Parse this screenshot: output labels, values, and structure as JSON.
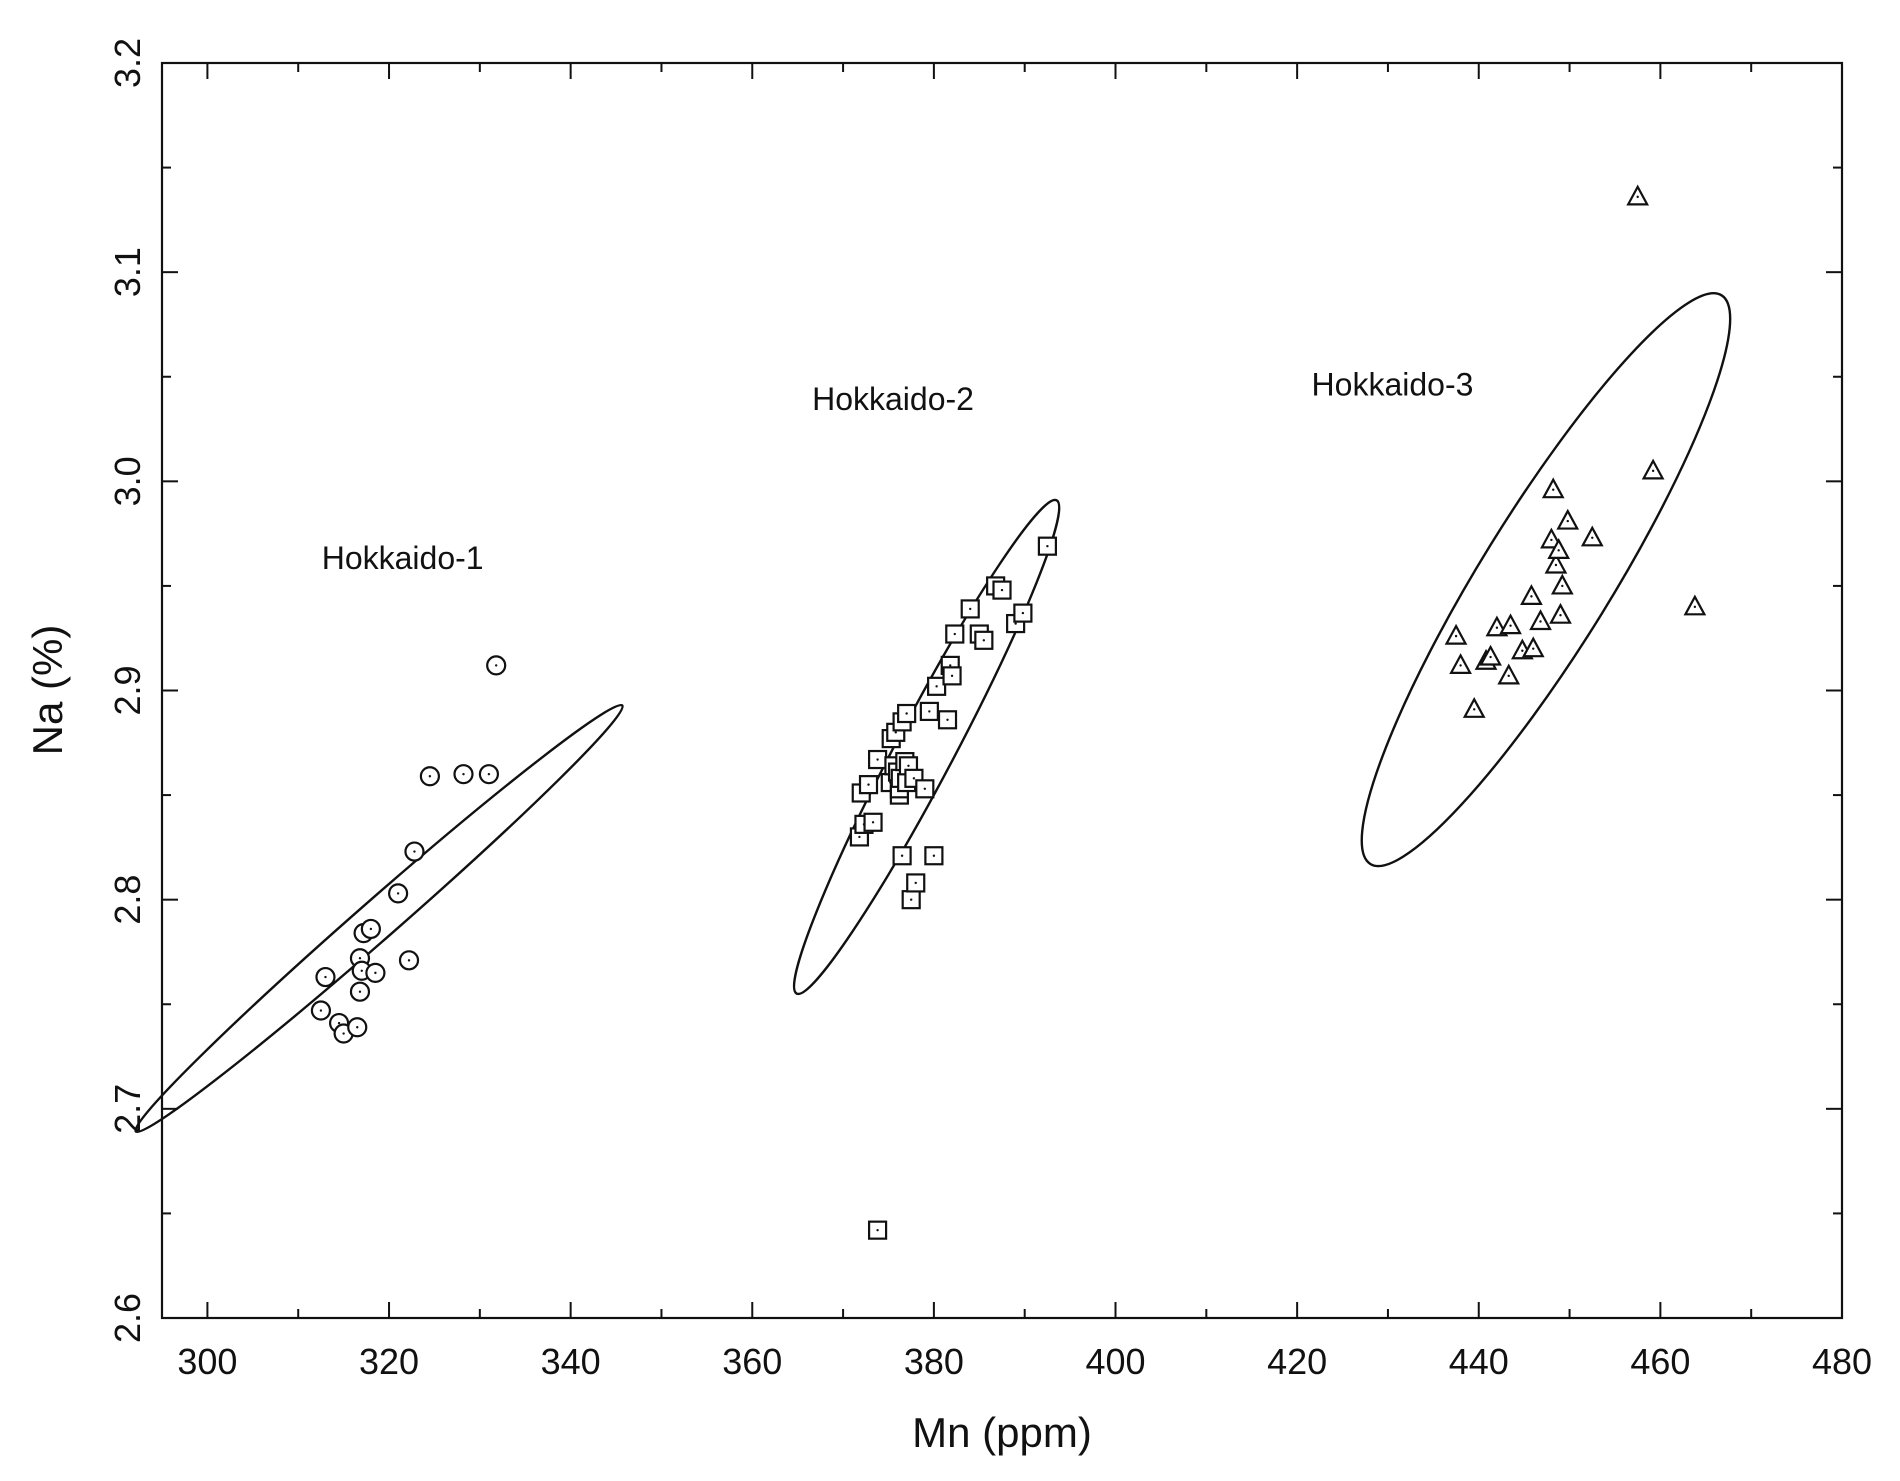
{
  "chart_data": {
    "type": "scatter",
    "title": "",
    "xlabel": "Mn (ppm)",
    "ylabel": "Na (%)",
    "xlim": [
      295,
      480
    ],
    "ylim": [
      2.6,
      3.2
    ],
    "x_ticks": [
      "300",
      "320",
      "340",
      "360",
      "380",
      "400",
      "420",
      "440",
      "460",
      "480"
    ],
    "y_ticks": [
      "2.6",
      "2.7",
      "2.8",
      "2.9",
      "3.0",
      "3.1",
      "3.2"
    ],
    "grid": false,
    "legend": "none",
    "series": [
      {
        "name": "Hokkaido-1",
        "marker": "circle",
        "points": [
          [
            312.5,
            2.747
          ],
          [
            313.0,
            2.763
          ],
          [
            314.5,
            2.741
          ],
          [
            315.0,
            2.736
          ],
          [
            316.5,
            2.739
          ],
          [
            316.8,
            2.756
          ],
          [
            316.8,
            2.772
          ],
          [
            317.0,
            2.766
          ],
          [
            317.2,
            2.784
          ],
          [
            318.0,
            2.786
          ],
          [
            318.5,
            2.765
          ],
          [
            321.0,
            2.803
          ],
          [
            322.2,
            2.771
          ],
          [
            322.8,
            2.823
          ],
          [
            324.5,
            2.859
          ],
          [
            328.2,
            2.86
          ],
          [
            331.0,
            2.86
          ],
          [
            331.8,
            2.912
          ]
        ]
      },
      {
        "name": "Hokkaido-2",
        "marker": "square",
        "points": [
          [
            371.8,
            2.83
          ],
          [
            372.0,
            2.851
          ],
          [
            372.3,
            2.836
          ],
          [
            372.8,
            2.855
          ],
          [
            373.3,
            2.837
          ],
          [
            373.8,
            2.867
          ],
          [
            373.8,
            2.642
          ],
          [
            375.2,
            2.856
          ],
          [
            375.3,
            2.877
          ],
          [
            375.6,
            2.864
          ],
          [
            375.8,
            2.88
          ],
          [
            376.0,
            2.861
          ],
          [
            376.2,
            2.85
          ],
          [
            376.2,
            2.853
          ],
          [
            376.3,
            2.858
          ],
          [
            376.5,
            2.885
          ],
          [
            376.5,
            2.821
          ],
          [
            376.8,
            2.866
          ],
          [
            377.0,
            2.889
          ],
          [
            377.0,
            2.856
          ],
          [
            377.2,
            2.864
          ],
          [
            377.5,
            2.8
          ],
          [
            377.8,
            2.858
          ],
          [
            378.0,
            2.808
          ],
          [
            379.0,
            2.853
          ],
          [
            379.5,
            2.89
          ],
          [
            380.0,
            2.821
          ],
          [
            380.3,
            2.902
          ],
          [
            381.5,
            2.886
          ],
          [
            381.8,
            2.912
          ],
          [
            382.0,
            2.907
          ],
          [
            382.3,
            2.927
          ],
          [
            384.0,
            2.939
          ],
          [
            385.0,
            2.927
          ],
          [
            385.5,
            2.924
          ],
          [
            386.8,
            2.95
          ],
          [
            387.5,
            2.948
          ],
          [
            389.0,
            2.932
          ],
          [
            389.8,
            2.937
          ],
          [
            392.5,
            2.969
          ]
        ]
      },
      {
        "name": "Hokkaido-3",
        "marker": "triangle",
        "points": [
          [
            437.5,
            2.926
          ],
          [
            438.0,
            2.912
          ],
          [
            439.5,
            2.891
          ],
          [
            440.8,
            2.914
          ],
          [
            441.3,
            2.916
          ],
          [
            442.0,
            2.93
          ],
          [
            443.3,
            2.907
          ],
          [
            443.5,
            2.931
          ],
          [
            444.8,
            2.919
          ],
          [
            445.8,
            2.945
          ],
          [
            446.0,
            2.92
          ],
          [
            446.8,
            2.933
          ],
          [
            448.0,
            2.972
          ],
          [
            448.2,
            2.996
          ],
          [
            448.5,
            2.96
          ],
          [
            448.8,
            2.967
          ],
          [
            449.0,
            2.936
          ],
          [
            449.2,
            2.95
          ],
          [
            449.8,
            2.981
          ],
          [
            452.5,
            2.973
          ],
          [
            457.5,
            3.136
          ],
          [
            459.2,
            3.005
          ],
          [
            463.8,
            2.94
          ]
        ]
      }
    ],
    "ellipses": [
      {
        "name": "Hokkaido-1",
        "label": "Hokkaido-1",
        "cx": 318.9,
        "cy": 2.791,
        "a": 35.6,
        "b": 2.15,
        "angle_deg": 41.2,
        "label_x": 321.5,
        "label_y": 2.958
      },
      {
        "name": "Hokkaido-2",
        "label": "Hokkaido-2",
        "cx": 379.2,
        "cy": 2.873,
        "a": 30.7,
        "b": 3.2,
        "angle_deg": 62.2,
        "label_x": 375.5,
        "label_y": 3.034
      },
      {
        "name": "Hokkaido-3",
        "label": "Hokkaido-3",
        "cx": 447.4,
        "cy": 2.953,
        "a": 36.8,
        "b": 7.2,
        "angle_deg": 58.3,
        "label_x": 430.5,
        "label_y": 3.041
      }
    ]
  }
}
